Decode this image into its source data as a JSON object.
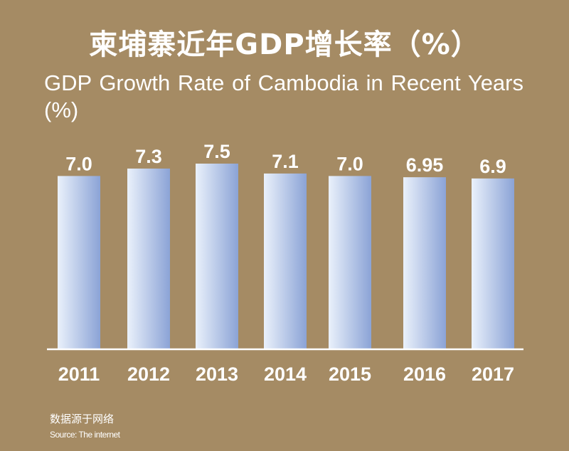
{
  "title_zh": "柬埔寨近年GDP增长率（%）",
  "title_en": "GDP Growth Rate of Cambodia in Recent Years (%)",
  "source_zh": "数据源于网络",
  "source_en": "Source: The internet",
  "colors": {
    "background": "#a58b64",
    "bar_light": "#eaf1fb",
    "bar_dark": "#8ba3d6",
    "axis": "#ffffff",
    "text": "#ffffff"
  },
  "chart_data": {
    "type": "bar",
    "categories": [
      "2011",
      "2012",
      "2013",
      "2014",
      "2015",
      "2016",
      "2017"
    ],
    "values": [
      7.0,
      7.3,
      7.5,
      7.1,
      7.0,
      6.95,
      6.9
    ],
    "value_labels": [
      "7.0",
      "7.3",
      "7.5",
      "7.1",
      "7.0",
      "6.95",
      "6.9"
    ],
    "title": "柬埔寨近年GDP增长率（%）",
    "subtitle": "GDP Growth Rate of Cambodia in Recent Years (%)",
    "xlabel": "",
    "ylabel": "",
    "ylim": [
      0,
      7.5
    ],
    "grid": false,
    "legend": "none"
  }
}
